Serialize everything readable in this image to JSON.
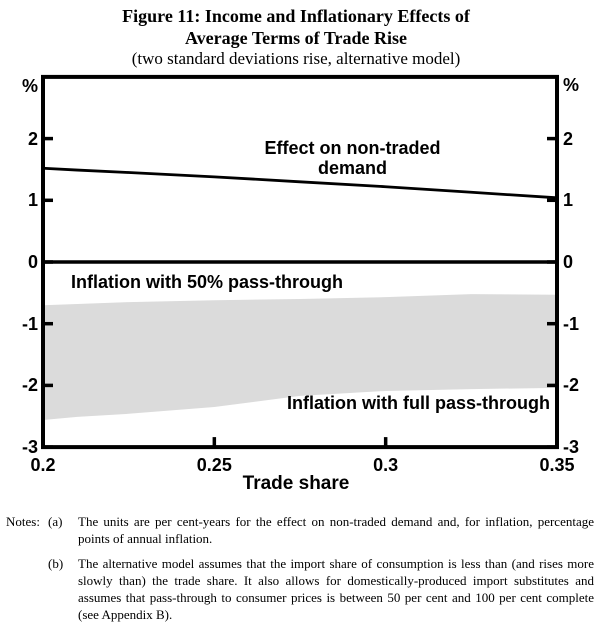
{
  "figure": {
    "title_line1": "Figure 11: Income and Inflationary Effects of",
    "title_line2": "Average Terms of Trade Rise",
    "subtitle": "(two standard deviations rise, alternative model)"
  },
  "chart_data": {
    "type": "area",
    "title": "Figure 11: Income and Inflationary Effects of Average Terms of Trade Rise",
    "xlabel": "Trade share",
    "ylabel": "%",
    "unit_label": "%",
    "xlim": [
      0.2,
      0.35
    ],
    "ylim": [
      -3,
      3
    ],
    "grid": false,
    "legend_position": "in-plot annotations",
    "x_ticks": [
      "0.2",
      "0.25",
      "0.3",
      "0.35"
    ],
    "x_tick_values": [
      0.2,
      0.25,
      0.3,
      0.35
    ],
    "y_ticks": [
      "2",
      "1",
      "0",
      "-1",
      "-2",
      "-3"
    ],
    "y_tick_values": [
      2,
      1,
      0,
      -1,
      -2,
      -3
    ],
    "x": [
      0.2,
      0.21,
      0.225,
      0.25,
      0.275,
      0.3,
      0.325,
      0.35
    ],
    "series": [
      {
        "name": "Effect on non-traded demand",
        "role": "line",
        "color": "#000000",
        "values": [
          1.52,
          1.49,
          1.45,
          1.38,
          1.3,
          1.22,
          1.13,
          1.04
        ]
      },
      {
        "name": "Inflation with 50% pass-through",
        "role": "band_upper",
        "color": "#dbdbdb",
        "values": [
          -0.7,
          -0.68,
          -0.65,
          -0.62,
          -0.6,
          -0.57,
          -0.52,
          -0.53
        ]
      },
      {
        "name": "Inflation with full pass-through",
        "role": "band_lower",
        "color": "#dbdbdb",
        "values": [
          -2.56,
          -2.51,
          -2.46,
          -2.35,
          -2.17,
          -2.09,
          -2.06,
          -2.04
        ]
      }
    ],
    "band_color": "#dbdbdb",
    "axis_color": "#000000"
  },
  "notes": {
    "label": "Notes:",
    "items": [
      {
        "marker": "(a)",
        "text": "The units are per cent-years for the effect on non-traded demand and, for inflation, percentage points of annual inflation."
      },
      {
        "marker": "(b)",
        "text": "The alternative model assumes that the import share of consumption is less than (and rises more slowly than) the trade share. It also allows for domestically-produced import substitutes and assumes that pass-through to consumer prices is between 50 per cent and 100 per cent complete (see Appendix B)."
      }
    ]
  }
}
